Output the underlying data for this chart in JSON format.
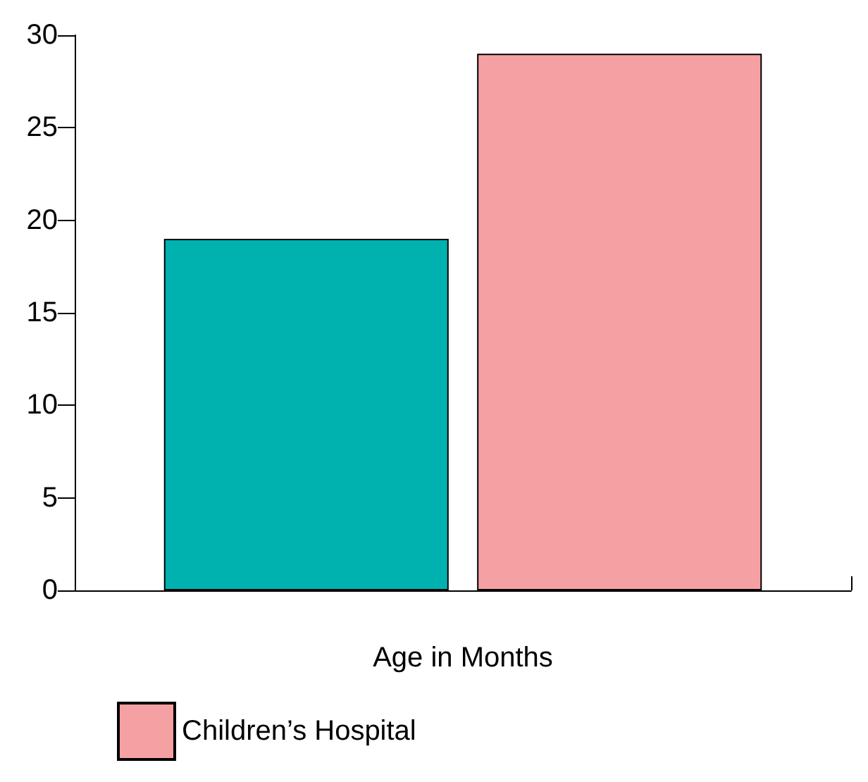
{
  "chart_data": {
    "type": "bar",
    "xlabel": "Age in Months",
    "categories": [
      null
    ],
    "series": [
      {
        "color": "#00b2af",
        "values": [
          19
        ]
      },
      {
        "name": "Children’s Hospital",
        "color": "#f5a1a4",
        "values": [
          29
        ]
      }
    ],
    "ylim": [
      0,
      30
    ],
    "yticks": [
      0,
      5,
      10,
      15,
      20,
      25,
      30
    ],
    "grid": false,
    "legend": "bottom"
  }
}
